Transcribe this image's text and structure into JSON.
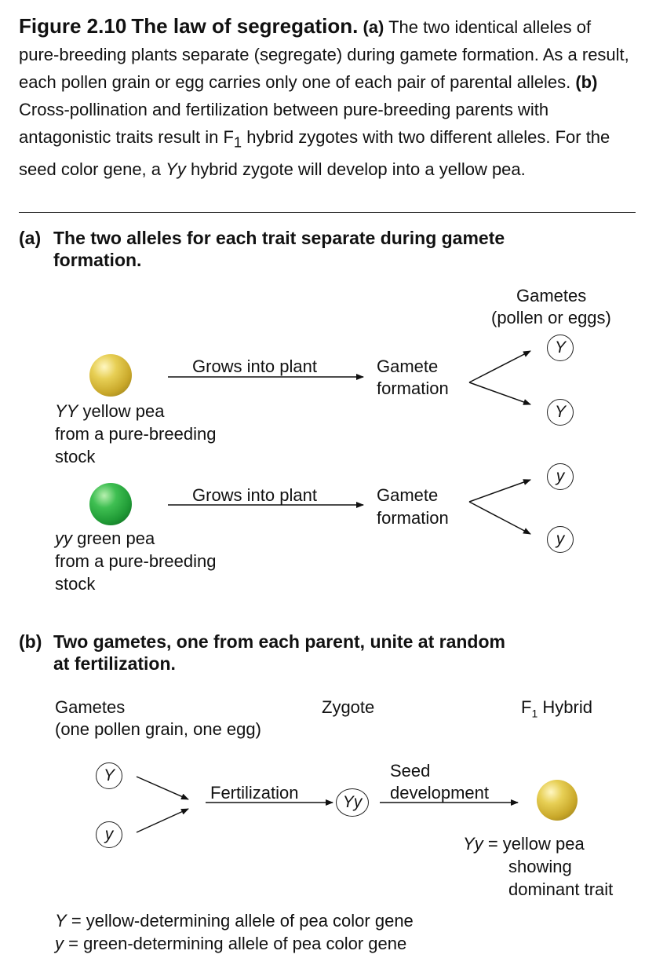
{
  "caption": {
    "figure_label": "Figure 2.10",
    "figure_title": "The law of segregation.",
    "part_a_tag": "(a)",
    "part_a_text": "The two identical alleles of pure-breeding plants separate (segregate) during gamete formation. As a result, each pollen grain or egg carries only one of each pair of parental alleles.",
    "part_b_tag": "(b)",
    "part_b_text_1": "Cross-pollination and fertilization between pure-breeding parents with antagonistic traits result in F",
    "part_b_sub": "1",
    "part_b_text_2": "hybrid zygotes with two different alleles. For the seed color gene, a",
    "part_b_italic": "Yy",
    "part_b_text_3": "hybrid zygote will develop into a yellow pea."
  },
  "section_a": {
    "tag": "(a)",
    "title_line1": "The two alleles for each trait separate during gamete",
    "title_line2": "formation.",
    "gametes_header_line1": "Gametes",
    "gametes_header_line2": "(pollen or eggs)",
    "row1": {
      "pea_color": "#d4b73a",
      "genotype": "YY",
      "label_line1": "yellow pea",
      "label_line2": "from a pure-breeding",
      "label_line3": "stock",
      "arrow_label": "Grows into plant",
      "process_line1": "Gamete",
      "process_line2": "formation",
      "gamete_top": "Y",
      "gamete_bottom": "Y"
    },
    "row2": {
      "pea_color": "#2fa844",
      "genotype": "yy",
      "label_line1": "green pea",
      "label_line2": "from a pure-breeding",
      "label_line3": "stock",
      "arrow_label": "Grows into plant",
      "process_line1": "Gamete",
      "process_line2": "formation",
      "gamete_top": "y",
      "gamete_bottom": "y"
    }
  },
  "section_b": {
    "tag": "(b)",
    "title_line1": "Two gametes, one from each parent, unite at random",
    "title_line2": "at fertilization.",
    "gametes_label_line1": "Gametes",
    "gametes_label_line2": "(one pollen grain, one egg)",
    "zygote_label": "Zygote",
    "hybrid_label_prefix": "F",
    "hybrid_label_sub": "1",
    "hybrid_label_suffix": "Hybrid",
    "gamete_top": "Y",
    "gamete_bottom": "y",
    "fertilization_label": "Fertilization",
    "zygote": "Yy",
    "seed_line1": "Seed",
    "seed_line2": "development",
    "result_genotype": "Yy",
    "result_equals": "=",
    "result_line1": "yellow pea",
    "result_line2": "showing",
    "result_line3": "dominant trait"
  },
  "legend": {
    "line1_symbol": "Y",
    "line1_text": "= yellow-determining allele of pea color gene",
    "line2_symbol": "y",
    "line2_text": "= green-determining allele of pea color gene"
  }
}
